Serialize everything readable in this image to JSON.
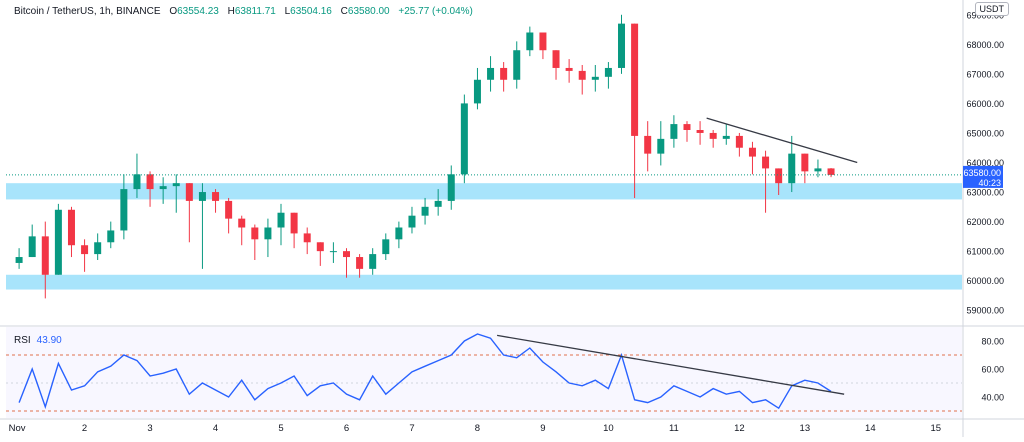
{
  "header": {
    "symbol": "Bitcoin / TetherUS, 1h, BINANCE",
    "o_label": "O",
    "o_value": "63554.23",
    "h_label": "H",
    "h_value": "63811.71",
    "l_label": "L",
    "l_value": "63504.16",
    "c_label": "C",
    "c_value": "63580.00",
    "change": "+25.77 (+0.04%)"
  },
  "currency_badge": "USDT",
  "price_badge": {
    "price": "63580.00",
    "countdown": "40:23"
  },
  "rsi_panel": {
    "label": "RSI",
    "value": "43.90",
    "ticks": [
      "80.00",
      "60.00",
      "40.00"
    ],
    "upper": 70,
    "lower": 30
  },
  "colors": {
    "up": "#089981",
    "down": "#f23645",
    "zone": "#a8e4fb",
    "rsi": "#2962ff",
    "trend": "#363a45",
    "badge": "#2962ff"
  },
  "chart_data": [
    {
      "type": "candlestick",
      "title": "Bitcoin / TetherUS, 1h, BINANCE",
      "y_ticks": [
        "69000.00",
        "68000.00",
        "67000.00",
        "66000.00",
        "65000.00",
        "64000.00",
        "63000.00",
        "62000.00",
        "61000.00",
        "60000.00",
        "59000.00"
      ],
      "x_ticks": [
        "Nov",
        "2",
        "3",
        "4",
        "5",
        "6",
        "7",
        "8",
        "9",
        "10",
        "11",
        "12",
        "13",
        "14",
        "15"
      ],
      "ylim": [
        58500,
        69500
      ],
      "x_range_days": [
        0.8,
        15.4
      ],
      "x": [
        1.0,
        1.2,
        1.4,
        1.6,
        1.8,
        2.0,
        2.2,
        2.4,
        2.6,
        2.8,
        3.0,
        3.2,
        3.4,
        3.6,
        3.8,
        4.0,
        4.2,
        4.4,
        4.6,
        4.8,
        5.0,
        5.2,
        5.4,
        5.6,
        5.8,
        6.0,
        6.2,
        6.4,
        6.6,
        6.8,
        7.0,
        7.2,
        7.4,
        7.6,
        7.8,
        8.0,
        8.2,
        8.4,
        8.6,
        8.8,
        9.0,
        9.2,
        9.4,
        9.6,
        9.8,
        10.0,
        10.2,
        10.4,
        10.6,
        10.8,
        11.0,
        11.2,
        11.4,
        11.6,
        11.8,
        12.0,
        12.2,
        12.4,
        12.6,
        12.8,
        13.0,
        13.2,
        13.4
      ],
      "close": [
        60800,
        61500,
        60200,
        62400,
        61200,
        60900,
        61300,
        61700,
        63100,
        63600,
        63100,
        63200,
        63300,
        62700,
        63000,
        62700,
        62100,
        61800,
        61400,
        61800,
        62300,
        61600,
        61300,
        61000,
        61000,
        60800,
        60400,
        60900,
        61400,
        61800,
        62200,
        62500,
        62700,
        63600,
        66000,
        66800,
        67200,
        66800,
        67800,
        68400,
        67800,
        67200,
        67100,
        66800,
        66900,
        67200,
        68700,
        64900,
        64300,
        64800,
        65300,
        65100,
        65000,
        64800,
        64900,
        64500,
        64200,
        63800,
        63300,
        64300,
        63700,
        63800,
        63580
      ],
      "high": [
        61100,
        61900,
        62000,
        62600,
        62500,
        61400,
        61600,
        62000,
        63600,
        64300,
        63700,
        63500,
        63600,
        63300,
        63300,
        63100,
        62800,
        62200,
        61900,
        62100,
        62600,
        62300,
        61800,
        61300,
        61300,
        61100,
        60900,
        61100,
        61600,
        62000,
        62500,
        62800,
        63100,
        63900,
        66300,
        67200,
        67600,
        67400,
        68100,
        68600,
        68400,
        67700,
        67500,
        67300,
        67300,
        67400,
        69000,
        68500,
        65400,
        65400,
        65600,
        65400,
        65400,
        65100,
        65300,
        65000,
        64700,
        64400,
        63800,
        64900,
        64200,
        64100,
        63811
      ],
      "low": [
        60400,
        60900,
        59400,
        61100,
        60800,
        60300,
        60700,
        61100,
        61400,
        62800,
        62500,
        62600,
        62300,
        61300,
        60400,
        62300,
        61600,
        61200,
        60700,
        60800,
        61200,
        61100,
        60900,
        60500,
        60600,
        60100,
        60100,
        60200,
        60700,
        61100,
        61600,
        61900,
        62200,
        62400,
        63300,
        65800,
        66400,
        66400,
        66500,
        67600,
        67500,
        66800,
        66700,
        66300,
        66400,
        66500,
        67000,
        62800,
        63700,
        63900,
        64500,
        64700,
        64600,
        64500,
        64600,
        64200,
        63600,
        62300,
        62900,
        63000,
        63300,
        63500,
        63504
      ]
    },
    {
      "type": "line",
      "name": "RSI",
      "ylim": [
        25,
        90
      ],
      "x": [
        1.0,
        1.2,
        1.4,
        1.6,
        1.8,
        2.0,
        2.2,
        2.4,
        2.6,
        2.8,
        3.0,
        3.2,
        3.4,
        3.6,
        3.8,
        4.0,
        4.2,
        4.4,
        4.6,
        4.8,
        5.0,
        5.2,
        5.4,
        5.6,
        5.8,
        6.0,
        6.2,
        6.4,
        6.6,
        6.8,
        7.0,
        7.2,
        7.4,
        7.6,
        7.8,
        8.0,
        8.2,
        8.4,
        8.6,
        8.8,
        9.0,
        9.2,
        9.4,
        9.6,
        9.8,
        10.0,
        10.2,
        10.4,
        10.6,
        10.8,
        11.0,
        11.2,
        11.4,
        11.6,
        11.8,
        12.0,
        12.2,
        12.4,
        12.6,
        12.8,
        13.0,
        13.2,
        13.4
      ],
      "values": [
        36,
        60,
        33,
        64,
        45,
        48,
        58,
        62,
        70,
        66,
        55,
        57,
        60,
        42,
        50,
        45,
        40,
        52,
        38,
        46,
        50,
        55,
        41,
        48,
        50,
        42,
        38,
        55,
        42,
        50,
        58,
        62,
        66,
        70,
        80,
        85,
        82,
        70,
        68,
        75,
        65,
        58,
        50,
        48,
        52,
        46,
        70,
        38,
        36,
        40,
        48,
        44,
        40,
        46,
        42,
        44,
        36,
        38,
        32,
        48,
        52,
        50,
        44
      ]
    }
  ]
}
